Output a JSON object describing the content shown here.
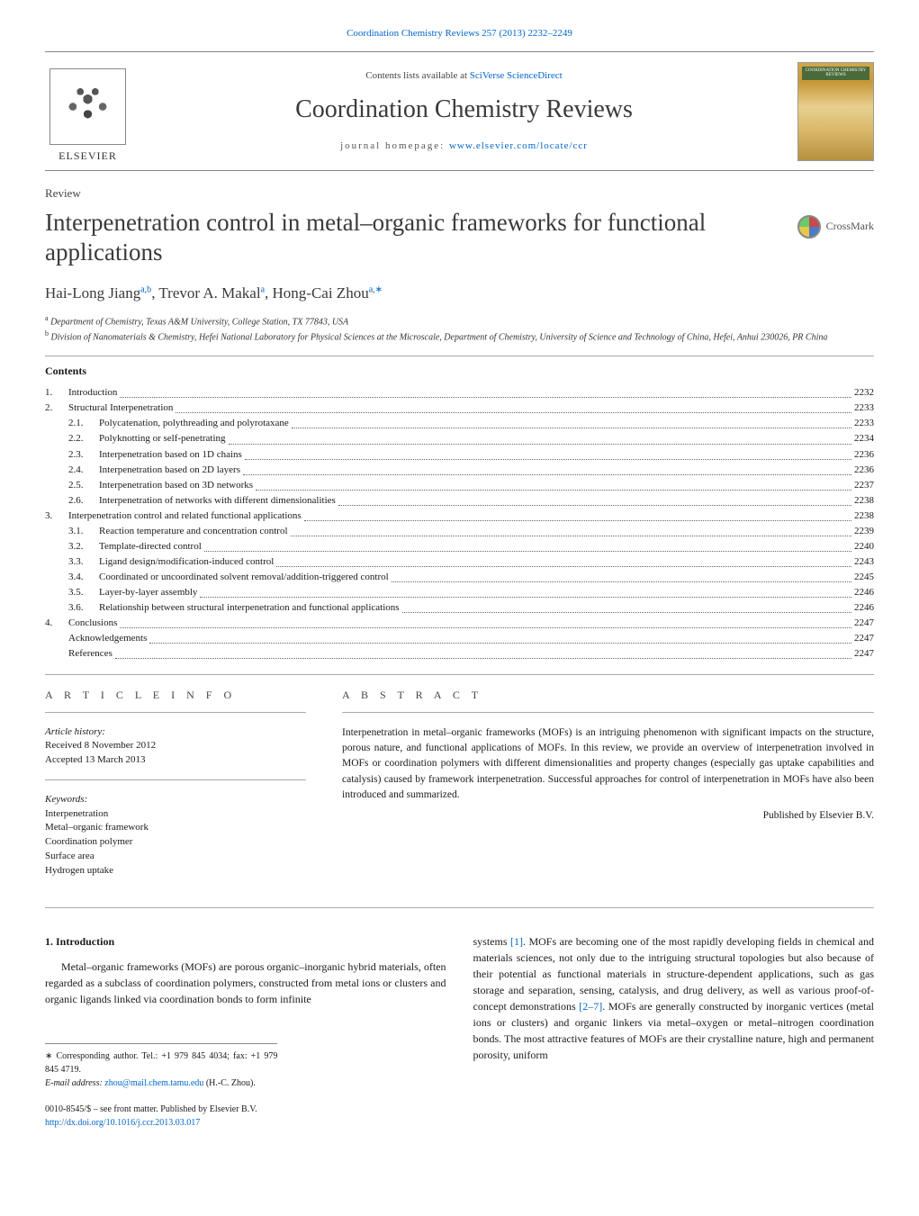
{
  "citation_link": "Coordination Chemistry Reviews 257 (2013) 2232–2249",
  "masthead": {
    "publisher": "ELSEVIER",
    "contents_prefix": "Contents lists available at ",
    "contents_link": "SciVerse ScienceDirect",
    "journal": "Coordination Chemistry Reviews",
    "homepage_prefix": "journal homepage: ",
    "homepage_link": "www.elsevier.com/locate/ccr"
  },
  "article_type": "Review",
  "title": "Interpenetration control in metal–organic frameworks for functional applications",
  "crossmark_label": "CrossMark",
  "authors_html": "Hai-Long Jiang",
  "author_sup1": "a,b",
  "author2": ", Trevor A. Makal",
  "author_sup2": "a",
  "author3": ", Hong-Cai Zhou",
  "author_sup3": "a,",
  "author_star": "∗",
  "affiliations": {
    "a": "Department of Chemistry, Texas A&M University, College Station, TX 77843, USA",
    "b": "Division of Nanomaterials & Chemistry, Hefei National Laboratory for Physical Sciences at the Microscale, Department of Chemistry, University of Science and Technology of China, Hefei, Anhui 230026, PR China"
  },
  "contents_label": "Contents",
  "toc": [
    {
      "level": 1,
      "num": "1.",
      "title": "Introduction",
      "page": "2232"
    },
    {
      "level": 1,
      "num": "2.",
      "title": "Structural Interpenetration",
      "page": "2233"
    },
    {
      "level": 2,
      "num": "2.1.",
      "title": "Polycatenation, polythreading and polyrotaxane",
      "page": "2233"
    },
    {
      "level": 2,
      "num": "2.2.",
      "title": "Polyknotting or self-penetrating",
      "page": "2234"
    },
    {
      "level": 2,
      "num": "2.3.",
      "title": "Interpenetration based on 1D chains",
      "page": "2236"
    },
    {
      "level": 2,
      "num": "2.4.",
      "title": "Interpenetration based on 2D layers",
      "page": "2236"
    },
    {
      "level": 2,
      "num": "2.5.",
      "title": "Interpenetration based on 3D networks",
      "page": "2237"
    },
    {
      "level": 2,
      "num": "2.6.",
      "title": "Interpenetration of networks with different dimensionalities",
      "page": "2238"
    },
    {
      "level": 1,
      "num": "3.",
      "title": "Interpenetration control and related functional applications",
      "page": "2238"
    },
    {
      "level": 2,
      "num": "3.1.",
      "title": "Reaction temperature and concentration control",
      "page": "2239"
    },
    {
      "level": 2,
      "num": "3.2.",
      "title": "Template-directed control",
      "page": "2240"
    },
    {
      "level": 2,
      "num": "3.3.",
      "title": "Ligand design/modification-induced control",
      "page": "2243"
    },
    {
      "level": 2,
      "num": "3.4.",
      "title": "Coordinated or uncoordinated solvent removal/addition-triggered control",
      "page": "2245"
    },
    {
      "level": 2,
      "num": "3.5.",
      "title": "Layer-by-layer assembly",
      "page": "2246"
    },
    {
      "level": 2,
      "num": "3.6.",
      "title": "Relationship between structural interpenetration and functional applications",
      "page": "2246"
    },
    {
      "level": 1,
      "num": "4.",
      "title": "Conclusions",
      "page": "2247"
    },
    {
      "level": 0,
      "num": "",
      "title": "Acknowledgements",
      "page": "2247"
    },
    {
      "level": 0,
      "num": "",
      "title": "References",
      "page": "2247"
    }
  ],
  "info_heading": "A R T I C L E    I N F O",
  "history_label": "Article history:",
  "history": {
    "received": "Received 8 November 2012",
    "accepted": "Accepted 13 March 2013"
  },
  "keywords_label": "Keywords:",
  "keywords": [
    "Interpenetration",
    "Metal–organic framework",
    "Coordination polymer",
    "Surface area",
    "Hydrogen uptake"
  ],
  "abstract_heading": "A B S T R A C T",
  "abstract_text": "Interpenetration in metal–organic frameworks (MOFs) is an intriguing phenomenon with significant impacts on the structure, porous nature, and functional applications of MOFs. In this review, we provide an overview of interpenetration involved in MOFs or coordination polymers with different dimensionalities and property changes (especially gas uptake capabilities and catalysis) caused by framework interpenetration. Successful approaches for control of interpenetration in MOFs have also been introduced and summarized.",
  "publisher_line": "Published by Elsevier B.V.",
  "section1_heading": "1. Introduction",
  "body_left": "Metal–organic frameworks (MOFs) are porous organic–inorganic hybrid materials, often regarded as a subclass of coordination polymers, constructed from metal ions or clusters and organic ligands linked via coordination bonds to form infinite",
  "body_right_1": "systems ",
  "body_right_ref1": "[1]",
  "body_right_2": ". MOFs are becoming one of the most rapidly developing fields in chemical and materials sciences, not only due to the intriguing structural topologies but also because of their potential as functional materials in structure-dependent applications, such as gas storage and separation, sensing, catalysis, and drug delivery, as well as various proof-of-concept demonstrations ",
  "body_right_ref2": "[2–7]",
  "body_right_3": ". MOFs are generally constructed by inorganic vertices (metal ions or clusters) and organic linkers via metal–oxygen or metal–nitrogen coordination bonds. The most attractive features of MOFs are their crystalline nature, high and permanent porosity, uniform",
  "footnote": {
    "star": "∗",
    "corr": "Corresponding author. Tel.: +1 979 845 4034; fax: +1 979 845 4719.",
    "email_label": "E-mail address: ",
    "email": "zhou@mail.chem.tamu.edu",
    "email_suffix": " (H.-C. Zhou)."
  },
  "copyright": {
    "issn": "0010-8545/$ – see front matter. Published by Elsevier B.V.",
    "doi": "http://dx.doi.org/10.1016/j.ccr.2013.03.017"
  },
  "colors": {
    "link": "#0066cc",
    "text": "#1a1a1a",
    "heading": "#3a3a3a",
    "rule": "#aaaaaa"
  }
}
